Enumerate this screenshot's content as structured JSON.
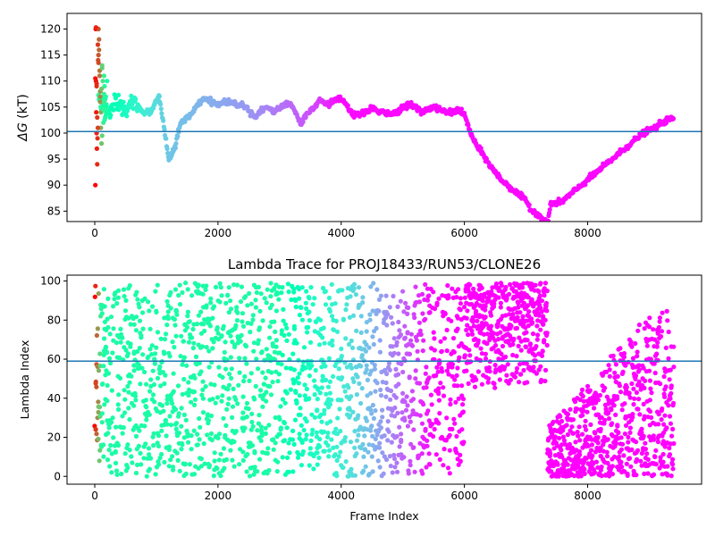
{
  "figure": {
    "background": "#ffffff",
    "colormap": "rainbow",
    "hline_color": "#1f77b4"
  },
  "chart_data": [
    {
      "type": "scatter",
      "title": "",
      "xlabel": "",
      "ylabel_symbol": "ΔG",
      "ylabel_unit": " (kT)",
      "xlim": [
        -450,
        9850
      ],
      "ylim": [
        83,
        123
      ],
      "x_ticks": [
        0,
        2000,
        4000,
        6000,
        8000
      ],
      "x_tick_labels": [
        "0",
        "2000",
        "4000",
        "6000",
        "8000"
      ],
      "y_ticks": [
        85,
        90,
        95,
        100,
        105,
        110,
        115,
        120
      ],
      "y_tick_labels": [
        "85",
        "90",
        "95",
        "100",
        "105",
        "110",
        "115",
        "120"
      ],
      "hline": 100.3,
      "grid": false,
      "legend": "none",
      "color_by": "lambda index (rainbow colormap)",
      "trace_anchors": {
        "x": [
          0,
          50,
          100,
          150,
          200,
          300,
          400,
          500,
          600,
          700,
          800,
          900,
          1000,
          1050,
          1100,
          1150,
          1200,
          1300,
          1350,
          1400,
          1500,
          1600,
          1700,
          1800,
          1900,
          2000,
          2100,
          2200,
          2300,
          2400,
          2500,
          2600,
          2700,
          2800,
          2900,
          3000,
          3100,
          3200,
          3300,
          3350,
          3400,
          3500,
          3600,
          3650,
          3700,
          3800,
          3900,
          4000,
          4100,
          4200,
          4300,
          4400,
          4500,
          4600,
          4700,
          4800,
          4900,
          5000,
          5100,
          5200,
          5300,
          5400,
          5500,
          5600,
          5700,
          5800,
          5900,
          6000,
          6100,
          6200,
          6300,
          6400,
          6500,
          6600,
          6700,
          6800,
          6900,
          7000,
          7100,
          7200,
          7300,
          7350,
          7400,
          7500,
          7600,
          7700,
          7800,
          7900,
          8000,
          8100,
          8200,
          8300,
          8400,
          8500,
          8600,
          8700,
          8800,
          8900,
          9000,
          9100,
          9200,
          9300,
          9400
        ],
        "y": [
          110,
          108,
          106,
          105,
          104,
          104.5,
          105.5,
          104,
          106,
          105,
          104,
          104,
          106,
          107,
          103,
          99,
          95,
          97,
          100,
          102,
          103,
          104,
          106,
          106.5,
          106,
          105.5,
          106,
          106,
          105.5,
          105.5,
          104.5,
          103,
          104.5,
          105,
          104,
          105,
          105.5,
          105.5,
          103,
          101.5,
          103,
          104.5,
          105.5,
          106.5,
          106,
          105.5,
          106.5,
          106.5,
          105,
          103.5,
          103.5,
          104,
          105,
          104,
          104,
          103.5,
          104,
          105,
          105.5,
          105,
          104,
          104.5,
          105,
          104.5,
          104,
          104,
          104.5,
          103.5,
          100,
          97.5,
          96,
          94,
          92.5,
          91,
          90,
          89,
          88,
          87,
          85,
          84.5,
          83,
          82.5,
          86.5,
          86.5,
          87,
          88,
          89,
          90,
          91,
          92,
          93,
          94,
          95,
          96,
          97,
          98,
          99,
          100,
          100.5,
          101,
          102,
          102.5,
          103
        ]
      },
      "early_scatter": {
        "x": [
          10,
          15,
          20,
          25,
          30,
          35,
          40,
          45,
          50,
          55,
          60,
          70,
          80,
          90,
          100,
          110,
          120,
          130,
          140,
          150,
          160,
          170,
          180,
          190,
          200,
          10,
          20,
          30,
          40,
          50,
          60,
          70,
          80,
          90,
          100,
          110,
          120,
          130,
          140,
          150,
          160,
          170,
          180,
          190,
          200,
          30,
          60,
          90,
          120,
          150,
          180
        ],
        "y": [
          90,
          120,
          110,
          104,
          100,
          97,
          94,
          99,
          117,
          114,
          120,
          116,
          112,
          108,
          101,
          98,
          113,
          106,
          102,
          111,
          109,
          103,
          107,
          105,
          110,
          110.5,
          120.3,
          109,
          103,
          101,
          115,
          118,
          111,
          106,
          104,
          108.5,
          99.5,
          110,
          104.5,
          107.5,
          102.5,
          106.5,
          103.5,
          105.5,
          104,
          109.5,
          113.5,
          107,
          112.5,
          106,
          104.5
        ],
        "lambda": [
          99,
          98,
          97,
          96,
          95,
          95,
          94,
          93,
          92,
          90,
          88,
          86,
          84,
          80,
          76,
          72,
          68,
          64,
          62,
          60,
          58,
          56,
          55,
          54,
          53,
          97,
          95,
          93,
          92,
          90,
          88,
          86,
          84,
          80,
          76,
          72,
          68,
          64,
          60,
          58,
          56,
          55,
          54,
          53,
          52,
          94,
          90,
          82,
          70,
          62,
          56
        ]
      }
    },
    {
      "type": "scatter",
      "title": "Lambda Trace for PROJ18433/RUN53/CLONE26",
      "xlabel": "Frame Index",
      "ylabel": "Lambda Index",
      "xlim": [
        -450,
        9850
      ],
      "ylim": [
        -4,
        103
      ],
      "x_ticks": [
        0,
        2000,
        4000,
        6000,
        8000
      ],
      "x_tick_labels": [
        "0",
        "2000",
        "4000",
        "6000",
        "8000"
      ],
      "y_ticks": [
        0,
        20,
        40,
        60,
        80,
        100
      ],
      "y_tick_labels": [
        "0",
        "20",
        "40",
        "60",
        "80",
        "100"
      ],
      "hline": 59,
      "grid": false,
      "legend": "none",
      "color_by": "frame index (rainbow colormap)",
      "frame_range": [
        0,
        9400
      ],
      "lambda_range": [
        0,
        99
      ],
      "regimes": [
        {
          "frames": [
            0,
            6000
          ],
          "lambda_range": [
            0,
            99
          ],
          "density": "dense, full range"
        },
        {
          "frames": [
            6000,
            7350
          ],
          "lambda_range": [
            45,
            99
          ],
          "density": "dense, upper range"
        },
        {
          "frames": [
            7350,
            9400
          ],
          "lambda_range": [
            0,
            85
          ],
          "density": "dense, lower range"
        }
      ]
    }
  ]
}
